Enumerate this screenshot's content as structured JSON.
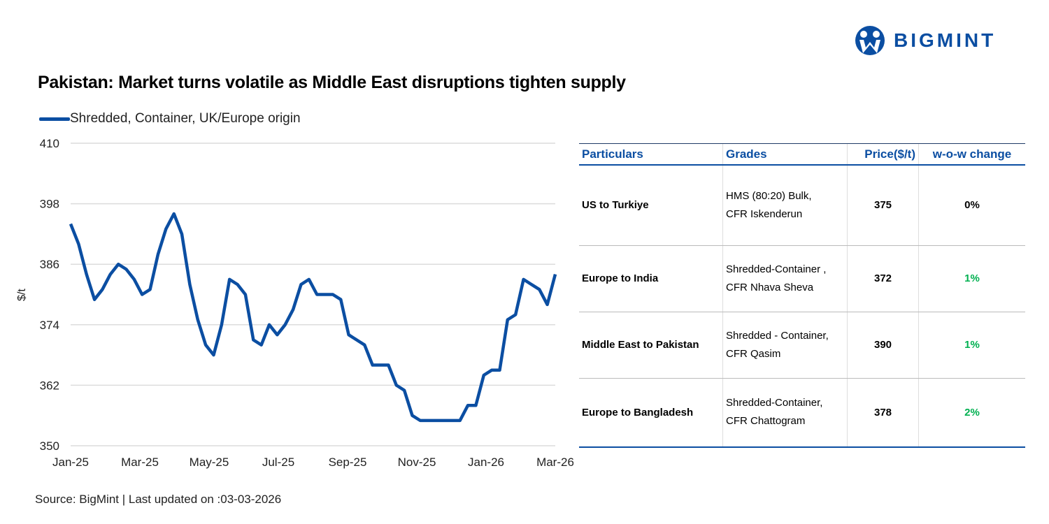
{
  "brand": {
    "name": "BIGMINT",
    "color": "#0b4ea2"
  },
  "title": "Pakistan: Market turns volatile as Middle East disruptions tighten supply",
  "source": "Source: BigMint | Last updated on :03-03-2026",
  "chart_data": {
    "type": "line",
    "title": "",
    "xlabel": "",
    "ylabel": "$/t",
    "ylim": [
      350,
      410
    ],
    "yticks": [
      "410",
      "398",
      "386",
      "374",
      "362",
      "350"
    ],
    "xticks": [
      "Jan-25",
      "Mar-25",
      "May-25",
      "Jul-25",
      "Sep-25",
      "Nov-25",
      "Jan-26",
      "Mar-26"
    ],
    "x_range": [
      "Jan-25",
      "Mar-26"
    ],
    "grid": true,
    "legend_position": "top-left",
    "series": [
      {
        "name": "Shredded, Container, UK/Europe origin",
        "color": "#0b4ea2",
        "values": [
          394,
          390,
          384,
          379,
          381,
          384,
          386,
          385,
          383,
          380,
          381,
          388,
          393,
          396,
          392,
          382,
          375,
          370,
          368,
          374,
          383,
          382,
          380,
          371,
          370,
          374,
          372,
          374,
          377,
          382,
          383,
          380,
          380,
          380,
          379,
          372,
          371,
          370,
          366,
          366,
          366,
          362,
          361,
          356,
          355,
          355,
          355,
          355,
          355,
          355,
          358,
          358,
          364,
          365,
          365,
          375,
          376,
          383,
          382,
          381,
          378,
          384
        ]
      }
    ]
  },
  "table": {
    "headers": [
      "Particulars",
      "Grades",
      "Price($/t)",
      "w-o-w change"
    ],
    "rows": [
      {
        "particular": "US to Turkiye",
        "grade1": "HMS (80:20) Bulk,",
        "grade2": "CFR Iskenderun",
        "price": "375",
        "change": "0%",
        "change_color": "#000000"
      },
      {
        "particular": "Europe to India",
        "grade1": "Shredded-Container ,",
        "grade2": "CFR Nhava Sheva",
        "price": "372",
        "change": "1%",
        "change_color": "#00b050"
      },
      {
        "particular": "Middle East to Pakistan",
        "grade1": "Shredded - Container,",
        "grade2": "CFR Qasim",
        "price": "390",
        "change": "1%",
        "change_color": "#00b050"
      },
      {
        "particular": "Europe to Bangladesh",
        "grade1": "Shredded-Container,",
        "grade2": "CFR Chattogram",
        "price": "378",
        "change": "2%",
        "change_color": "#00b050"
      }
    ]
  }
}
